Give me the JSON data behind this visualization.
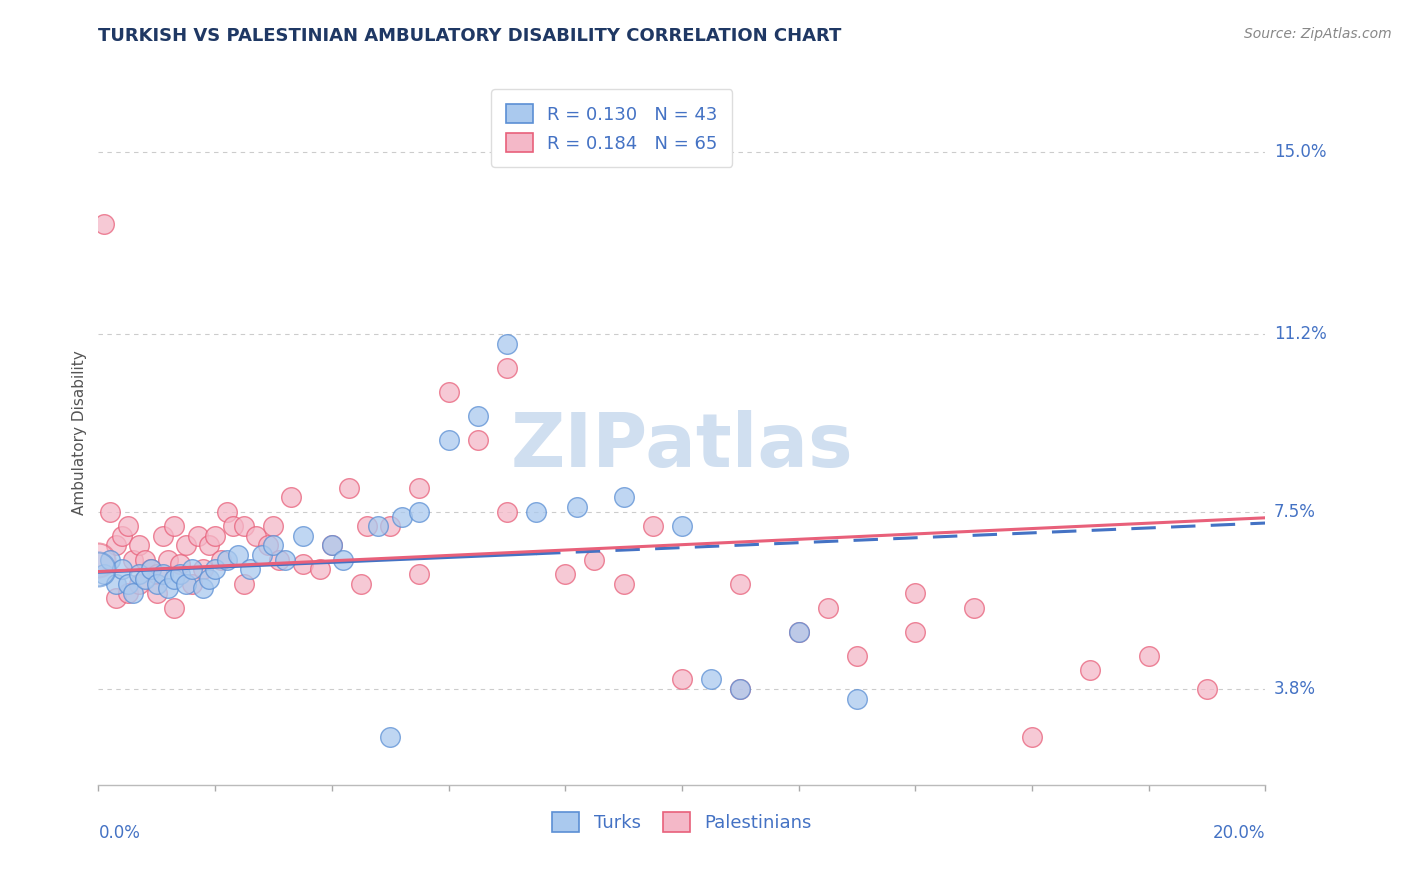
{
  "title": "TURKISH VS PALESTINIAN AMBULATORY DISABILITY CORRELATION CHART",
  "source": "Source: ZipAtlas.com",
  "ylabel": "Ambulatory Disability",
  "yticks_right_vals": [
    0.15,
    0.112,
    0.075,
    0.038
  ],
  "ytick_labels": [
    "15.0%",
    "11.2%",
    "7.5%",
    "3.8%"
  ],
  "xmin": 0.0,
  "xmax": 0.2,
  "ymin": 0.018,
  "ymax": 0.165,
  "turks_R": 0.13,
  "turks_N": 43,
  "palestinians_R": 0.184,
  "palestinians_N": 65,
  "turks_color": "#aac9ee",
  "palestinians_color": "#f4b8c8",
  "turks_edge_color": "#5b8fd4",
  "palestinians_edge_color": "#e8607a",
  "turks_line_color": "#4472c4",
  "palestinians_line_color": "#e8607a",
  "watermark_color": "#d0dff0",
  "title_color": "#1f3864",
  "axis_label_color": "#4472c4",
  "legend_text_color": "#4472c4",
  "turks_x": [
    0.001,
    0.002,
    0.003,
    0.004,
    0.005,
    0.006,
    0.007,
    0.008,
    0.009,
    0.01,
    0.011,
    0.012,
    0.013,
    0.014,
    0.015,
    0.016,
    0.018,
    0.019,
    0.02,
    0.022,
    0.024,
    0.026,
    0.028,
    0.03,
    0.032,
    0.035,
    0.04,
    0.042,
    0.048,
    0.052,
    0.055,
    0.06,
    0.065,
    0.07,
    0.075,
    0.082,
    0.09,
    0.1,
    0.105,
    0.11,
    0.12,
    0.13,
    0.05
  ],
  "turks_y": [
    0.062,
    0.065,
    0.06,
    0.063,
    0.06,
    0.058,
    0.062,
    0.061,
    0.063,
    0.06,
    0.062,
    0.059,
    0.061,
    0.062,
    0.06,
    0.063,
    0.059,
    0.061,
    0.063,
    0.065,
    0.066,
    0.063,
    0.066,
    0.068,
    0.065,
    0.07,
    0.068,
    0.065,
    0.072,
    0.074,
    0.075,
    0.09,
    0.095,
    0.11,
    0.075,
    0.076,
    0.078,
    0.072,
    0.04,
    0.038,
    0.05,
    0.036,
    0.028
  ],
  "palestinians_x": [
    0.001,
    0.002,
    0.003,
    0.004,
    0.005,
    0.006,
    0.007,
    0.008,
    0.009,
    0.01,
    0.011,
    0.012,
    0.013,
    0.014,
    0.015,
    0.016,
    0.017,
    0.018,
    0.019,
    0.02,
    0.021,
    0.022,
    0.023,
    0.025,
    0.027,
    0.029,
    0.031,
    0.033,
    0.035,
    0.038,
    0.04,
    0.043,
    0.046,
    0.05,
    0.055,
    0.06,
    0.065,
    0.07,
    0.08,
    0.09,
    0.1,
    0.11,
    0.12,
    0.13,
    0.14,
    0.15,
    0.16,
    0.17,
    0.18,
    0.19,
    0.025,
    0.03,
    0.045,
    0.055,
    0.07,
    0.085,
    0.095,
    0.11,
    0.125,
    0.14,
    0.003,
    0.005,
    0.007,
    0.01,
    0.013
  ],
  "palestinians_y": [
    0.135,
    0.075,
    0.068,
    0.07,
    0.072,
    0.065,
    0.068,
    0.065,
    0.063,
    0.062,
    0.07,
    0.065,
    0.072,
    0.064,
    0.068,
    0.06,
    0.07,
    0.063,
    0.068,
    0.07,
    0.065,
    0.075,
    0.072,
    0.072,
    0.07,
    0.068,
    0.065,
    0.078,
    0.064,
    0.063,
    0.068,
    0.08,
    0.072,
    0.072,
    0.062,
    0.1,
    0.09,
    0.105,
    0.062,
    0.06,
    0.04,
    0.038,
    0.05,
    0.045,
    0.05,
    0.055,
    0.028,
    0.042,
    0.045,
    0.038,
    0.06,
    0.072,
    0.06,
    0.08,
    0.075,
    0.065,
    0.072,
    0.06,
    0.055,
    0.058,
    0.057,
    0.058,
    0.06,
    0.058,
    0.055
  ]
}
